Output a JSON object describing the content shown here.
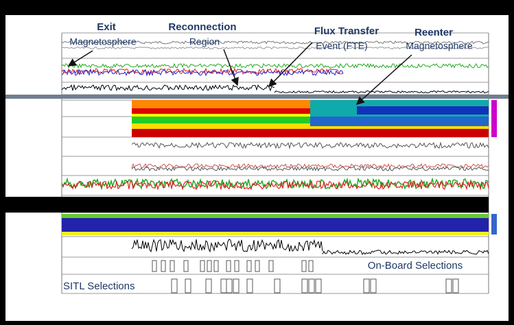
{
  "annotations": [
    {
      "title": "Exit",
      "text": "Magnetosphere"
    },
    {
      "title": "Reconnection",
      "text": "Region"
    },
    {
      "title": "Flux Transfer",
      "text": "Event (FTE)"
    },
    {
      "title": "Reenter",
      "text": "Magnetosphere"
    }
  ],
  "selections": {
    "onboard": "On-Board Selections",
    "sitl": "SITL Selections"
  }
}
